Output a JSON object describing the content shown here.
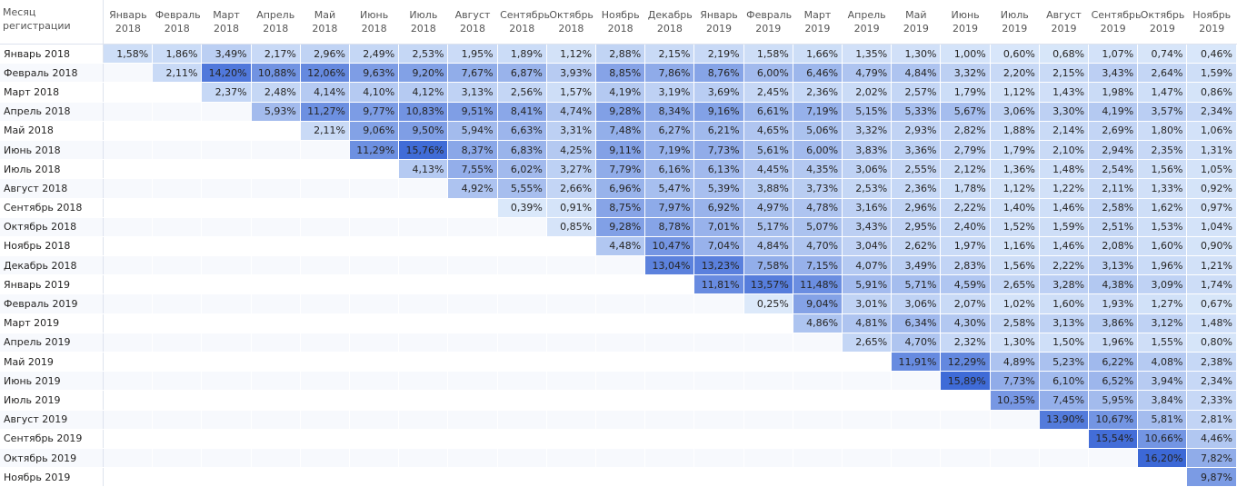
{
  "table": {
    "header": [
      "Месяц регистрации",
      "Январь 2018",
      "Февраль 2018",
      "Март 2018",
      "Апрель 2018",
      "Май 2018",
      "Июнь 2018",
      "Июль 2018",
      "Август 2018",
      "Сентябрь 2018",
      "Октябрь 2018",
      "Ноябрь 2018",
      "Декабрь 2018",
      "Январь 2019",
      "Февраль 2019",
      "Март 2019",
      "Апрель 2019",
      "Май 2019",
      "Июнь 2019",
      "Июль 2019",
      "Август 2019",
      "Сентябрь 2019",
      "Октябрь 2019",
      "Ноябрь 2019"
    ],
    "rows": [
      [
        "Январь 2018",
        "1,58%",
        "1,86%",
        "3,49%",
        "2,17%",
        "2,96%",
        "2,49%",
        "2,53%",
        "1,95%",
        "1,89%",
        "1,12%",
        "2,88%",
        "2,15%",
        "2,19%",
        "1,58%",
        "1,66%",
        "1,35%",
        "1,30%",
        "1,00%",
        "0,60%",
        "0,68%",
        "1,07%",
        "0,74%",
        "0,46%"
      ],
      [
        "Февраль 2018",
        "2,11%",
        "14,20%",
        "10,88%",
        "12,06%",
        "9,63%",
        "9,20%",
        "7,67%",
        "6,87%",
        "3,93%",
        "8,85%",
        "7,86%",
        "8,76%",
        "6,00%",
        "6,46%",
        "4,79%",
        "4,84%",
        "3,32%",
        "2,20%",
        "2,15%",
        "3,43%",
        "2,64%",
        "1,59%"
      ],
      [
        "Март 2018",
        "2,37%",
        "2,48%",
        "4,14%",
        "4,10%",
        "4,12%",
        "3,13%",
        "2,56%",
        "1,57%",
        "4,19%",
        "3,19%",
        "3,69%",
        "2,45%",
        "2,36%",
        "2,02%",
        "2,57%",
        "1,79%",
        "1,12%",
        "1,43%",
        "1,98%",
        "1,47%",
        "0,86%"
      ],
      [
        "Апрель 2018",
        "5,93%",
        "11,27%",
        "9,77%",
        "10,83%",
        "9,51%",
        "8,41%",
        "4,74%",
        "9,28%",
        "8,34%",
        "9,16%",
        "6,61%",
        "7,19%",
        "5,15%",
        "5,33%",
        "5,67%",
        "3,06%",
        "3,30%",
        "4,19%",
        "3,57%",
        "2,34%"
      ],
      [
        "Май 2018",
        "2,11%",
        "9,06%",
        "9,50%",
        "5,94%",
        "6,63%",
        "3,31%",
        "7,48%",
        "6,27%",
        "6,21%",
        "4,65%",
        "5,06%",
        "3,32%",
        "2,93%",
        "2,82%",
        "1,88%",
        "2,14%",
        "2,69%",
        "1,80%",
        "1,06%"
      ],
      [
        "Июнь 2018",
        "11,29%",
        "15,76%",
        "8,37%",
        "6,83%",
        "4,25%",
        "9,11%",
        "7,19%",
        "7,73%",
        "5,61%",
        "6,00%",
        "3,83%",
        "3,36%",
        "2,79%",
        "1,79%",
        "2,10%",
        "2,94%",
        "2,35%",
        "1,31%"
      ],
      [
        "Июль 2018",
        "4,13%",
        "7,55%",
        "6,02%",
        "3,27%",
        "7,79%",
        "6,16%",
        "6,13%",
        "4,45%",
        "4,35%",
        "3,06%",
        "2,55%",
        "2,12%",
        "1,36%",
        "1,48%",
        "2,54%",
        "1,56%",
        "1,05%"
      ],
      [
        "Август 2018",
        "4,92%",
        "5,55%",
        "2,66%",
        "6,96%",
        "5,47%",
        "5,39%",
        "3,88%",
        "3,73%",
        "2,53%",
        "2,36%",
        "1,78%",
        "1,12%",
        "1,22%",
        "2,11%",
        "1,33%",
        "0,92%"
      ],
      [
        "Сентябрь 2018",
        "0,39%",
        "0,91%",
        "8,75%",
        "7,97%",
        "6,92%",
        "4,97%",
        "4,78%",
        "3,16%",
        "2,96%",
        "2,22%",
        "1,40%",
        "1,46%",
        "2,58%",
        "1,62%",
        "0,97%"
      ],
      [
        "Октябрь 2018",
        "0,85%",
        "9,28%",
        "8,78%",
        "7,01%",
        "5,17%",
        "5,07%",
        "3,43%",
        "2,95%",
        "2,40%",
        "1,52%",
        "1,59%",
        "2,51%",
        "1,53%",
        "1,04%"
      ],
      [
        "Ноябрь 2018",
        "4,48%",
        "10,47%",
        "7,04%",
        "4,84%",
        "4,70%",
        "3,04%",
        "2,62%",
        "1,97%",
        "1,16%",
        "1,46%",
        "2,08%",
        "1,60%",
        "0,90%"
      ],
      [
        "Декабрь 2018",
        "13,04%",
        "13,23%",
        "7,58%",
        "7,15%",
        "4,07%",
        "3,49%",
        "2,83%",
        "1,56%",
        "2,22%",
        "3,13%",
        "1,96%",
        "1,21%"
      ],
      [
        "Январь 2019",
        "11,81%",
        "13,57%",
        "11,48%",
        "5,91%",
        "5,71%",
        "4,59%",
        "2,65%",
        "3,28%",
        "4,38%",
        "3,09%",
        "1,74%"
      ],
      [
        "Февраль 2019",
        "0,25%",
        "9,04%",
        "3,01%",
        "3,06%",
        "2,07%",
        "1,02%",
        "1,60%",
        "1,93%",
        "1,27%",
        "0,67%"
      ],
      [
        "Март 2019",
        "4,86%",
        "4,81%",
        "6,34%",
        "4,30%",
        "2,58%",
        "3,13%",
        "3,86%",
        "3,12%",
        "1,48%"
      ],
      [
        "Апрель 2019",
        "2,65%",
        "4,70%",
        "2,32%",
        "1,30%",
        "1,50%",
        "1,96%",
        "1,55%",
        "0,80%"
      ],
      [
        "Май 2019",
        "11,91%",
        "12,29%",
        "4,89%",
        "5,23%",
        "6,22%",
        "4,08%",
        "2,38%"
      ],
      [
        "Июнь 2019",
        "15,89%",
        "7,73%",
        "6,10%",
        "6,52%",
        "3,94%",
        "2,34%"
      ],
      [
        "Июль 2019",
        "10,35%",
        "7,45%",
        "5,95%",
        "3,84%",
        "2,33%"
      ],
      [
        "Август 2019",
        "13,90%",
        "10,67%",
        "5,81%",
        "2,81%"
      ],
      [
        "Сентябрь 2019",
        "15,54%",
        "10,66%",
        "4,46%"
      ],
      [
        "Октябрь 2019",
        "16,20%",
        "7,82%"
      ],
      [
        "Ноябрь 2019",
        "9,87%"
      ]
    ]
  }
}
